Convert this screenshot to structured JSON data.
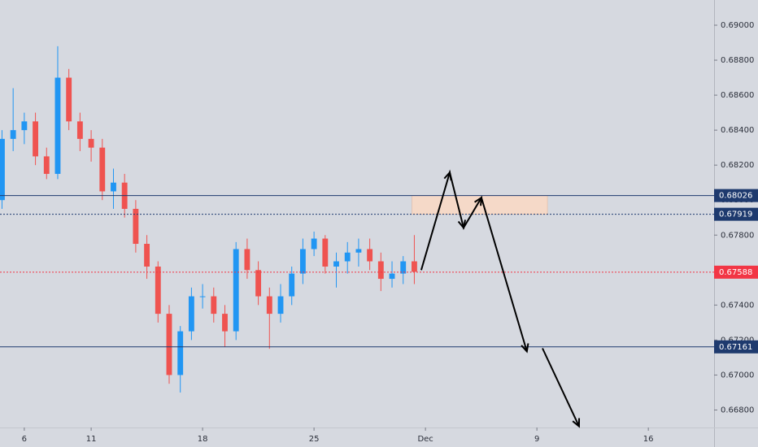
{
  "chart_data": {
    "type": "candlestick",
    "x": [
      -1.0,
      -0.5,
      0,
      0.5,
      1.0,
      1.5,
      2.0,
      2.5,
      3.0,
      3.5,
      4.0,
      4.5,
      5.0,
      5.5,
      6.0,
      6.5,
      7.0,
      7.5,
      8.0,
      8.5,
      9.0,
      9.5,
      10.0,
      10.5,
      11.0,
      11.5,
      12.0,
      12.5,
      13.0,
      13.5,
      14.0,
      14.5,
      15.0,
      15.5,
      16.0,
      16.5,
      17.0,
      17.5
    ],
    "open": [
      0.68,
      0.6835,
      0.684,
      0.6845,
      0.6825,
      0.6815,
      0.687,
      0.6845,
      0.6835,
      0.683,
      0.6805,
      0.681,
      0.6795,
      0.6775,
      0.6762,
      0.6735,
      0.67,
      0.6725,
      0.6745,
      0.6745,
      0.6735,
      0.6725,
      0.6772,
      0.676,
      0.6745,
      0.6735,
      0.6745,
      0.6758,
      0.6772,
      0.6778,
      0.6762,
      0.6765,
      0.677,
      0.6772,
      0.6765,
      0.6755,
      0.6758,
      0.6765
    ],
    "high": [
      0.684,
      0.6864,
      0.685,
      0.685,
      0.683,
      0.6888,
      0.6875,
      0.685,
      0.684,
      0.6835,
      0.6818,
      0.6815,
      0.68,
      0.678,
      0.6765,
      0.674,
      0.6728,
      0.675,
      0.6752,
      0.675,
      0.674,
      0.6776,
      0.6778,
      0.6765,
      0.675,
      0.6752,
      0.6762,
      0.6778,
      0.6782,
      0.678,
      0.677,
      0.6776,
      0.6778,
      0.6778,
      0.677,
      0.6765,
      0.6768,
      0.678
    ],
    "low": [
      0.6795,
      0.6828,
      0.6832,
      0.682,
      0.6812,
      0.6812,
      0.684,
      0.6828,
      0.6822,
      0.68,
      0.6795,
      0.679,
      0.677,
      0.6755,
      0.673,
      0.6695,
      0.669,
      0.672,
      0.6738,
      0.673,
      0.6716,
      0.672,
      0.6755,
      0.674,
      0.6715,
      0.673,
      0.674,
      0.6752,
      0.6768,
      0.6758,
      0.675,
      0.6758,
      0.6762,
      0.676,
      0.6748,
      0.675,
      0.6752,
      0.6752
    ],
    "close": [
      0.6835,
      0.684,
      0.6845,
      0.6825,
      0.6815,
      0.687,
      0.6845,
      0.6835,
      0.683,
      0.6805,
      0.681,
      0.6795,
      0.6775,
      0.6762,
      0.6735,
      0.67,
      0.6725,
      0.6745,
      0.6745,
      0.6735,
      0.6725,
      0.6772,
      0.676,
      0.6745,
      0.6735,
      0.6745,
      0.6758,
      0.6772,
      0.6778,
      0.6762,
      0.6765,
      0.677,
      0.6772,
      0.6765,
      0.6755,
      0.6758,
      0.6765,
      0.6759
    ],
    "up_color": "#2196f3",
    "down_color": "#ef5350",
    "xlim": [
      -1.09,
      30.95
    ],
    "xticks": [
      {
        "value": 0,
        "label": "6"
      },
      {
        "value": 3,
        "label": "11"
      },
      {
        "value": 8,
        "label": "18"
      },
      {
        "value": 13,
        "label": "25"
      },
      {
        "value": 18,
        "label": "Dec"
      },
      {
        "value": 23,
        "label": "9"
      },
      {
        "value": 28,
        "label": "16"
      }
    ],
    "ylim": [
      0.667,
      0.69144
    ],
    "yticks": [
      {
        "value": 0.668,
        "label": "0.66800"
      },
      {
        "value": 0.67,
        "label": "0.67000"
      },
      {
        "value": 0.672,
        "label": "0.67200"
      },
      {
        "value": 0.674,
        "label": "0.67400"
      },
      {
        "value": 0.676,
        "label": "0.67600"
      },
      {
        "value": 0.678,
        "label": "0.67800"
      },
      {
        "value": 0.68,
        "label": "0.68000"
      },
      {
        "value": 0.682,
        "label": "0.68200"
      },
      {
        "value": 0.684,
        "label": "0.68400"
      },
      {
        "value": 0.686,
        "label": "0.68600"
      },
      {
        "value": 0.688,
        "label": "0.68800"
      },
      {
        "value": 0.69,
        "label": "0.69000"
      }
    ],
    "grid": false,
    "levels": [
      {
        "value": 0.68026,
        "color": "#1e3a6e",
        "style": "solid"
      },
      {
        "value": 0.67919,
        "color": "#1e3a6e",
        "style": "dotted"
      },
      {
        "value": 0.67161,
        "color": "#1e3a6e",
        "style": "solid"
      },
      {
        "value": 0.67588,
        "color": "#f23645",
        "style": "dotted"
      }
    ],
    "zone": {
      "x": [
        17.4,
        23.47
      ],
      "y": [
        0.67919,
        0.68026
      ],
      "color": "#f5d9c8"
    },
    "projection": {
      "x": [
        17.81,
        19.09,
        19.71,
        20.51,
        22.55,
        null,
        23.25,
        24.89
      ],
      "y": [
        0.676,
        0.68158,
        0.67842,
        0.68014,
        0.67135,
        null,
        0.67153,
        0.66707
      ],
      "color": "#000000"
    }
  }
}
